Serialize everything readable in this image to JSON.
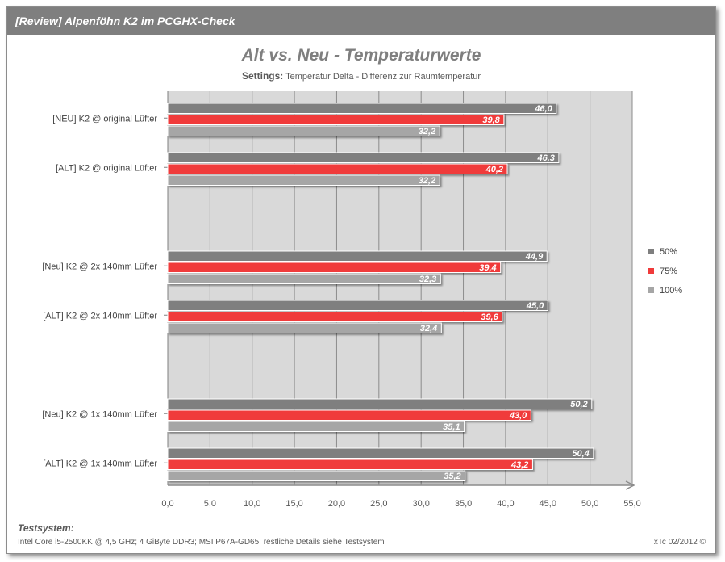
{
  "header": {
    "title": "[Review] Alpenföhn K2 im PCGHX-Check"
  },
  "chart_data": {
    "type": "bar",
    "orientation": "horizontal",
    "title": "Alt vs. Neu - Temperaturwerte",
    "subtitle_label": "Settings:",
    "subtitle_text": " Temperatur  Delta - Differenz zur Raumtemperatur",
    "categories": [
      "[NEU] K2 @ original Lüfter",
      "[ALT] K2 @ original Lüfter",
      "",
      "[Neu] K2 @ 2x 140mm Lüfter",
      "[ALT] K2 @ 2x 140mm Lüfter",
      "",
      "[Neu] K2 @ 1x 140mm Lüfter",
      "[ALT] K2 @ 1x 140mm Lüfter"
    ],
    "series": [
      {
        "name": "50%",
        "color": "#7f7f7f",
        "values": [
          46.0,
          46.3,
          null,
          44.9,
          45.0,
          null,
          50.2,
          50.4
        ],
        "labels": [
          "46,0",
          "46,3",
          "",
          "44,9",
          "45,0",
          "",
          "50,2",
          "50,4"
        ]
      },
      {
        "name": "75%",
        "color": "#f03a3a",
        "values": [
          39.8,
          40.2,
          null,
          39.4,
          39.6,
          null,
          43.0,
          43.2
        ],
        "labels": [
          "39,8",
          "40,2",
          "",
          "39,4",
          "39,6",
          "",
          "43,0",
          "43,2"
        ]
      },
      {
        "name": "100%",
        "color": "#a6a6a6",
        "values": [
          32.2,
          32.2,
          null,
          32.3,
          32.4,
          null,
          35.1,
          35.2
        ],
        "labels": [
          "32,2",
          "32,2",
          "",
          "32,3",
          "32,4",
          "",
          "35,1",
          "35,2"
        ]
      }
    ],
    "xlim": [
      0,
      55
    ],
    "xticks": [
      0,
      5,
      10,
      15,
      20,
      25,
      30,
      35,
      40,
      45,
      50,
      55
    ],
    "xtick_labels": [
      "0,0",
      "5,0",
      "10,0",
      "15,0",
      "20,0",
      "25,0",
      "30,0",
      "35,0",
      "40,0",
      "45,0",
      "50,0",
      "55,0"
    ],
    "grid": true,
    "legend_position": "right"
  },
  "footer": {
    "heading": "Testsystem:",
    "details": "Intel Core i5-2500KK @ 4,5 GHz; 4 GiByte DDR3; MSI P67A-GD65; restliche Details siehe Testsystem",
    "credit": "xTc 02/2012 ©"
  }
}
